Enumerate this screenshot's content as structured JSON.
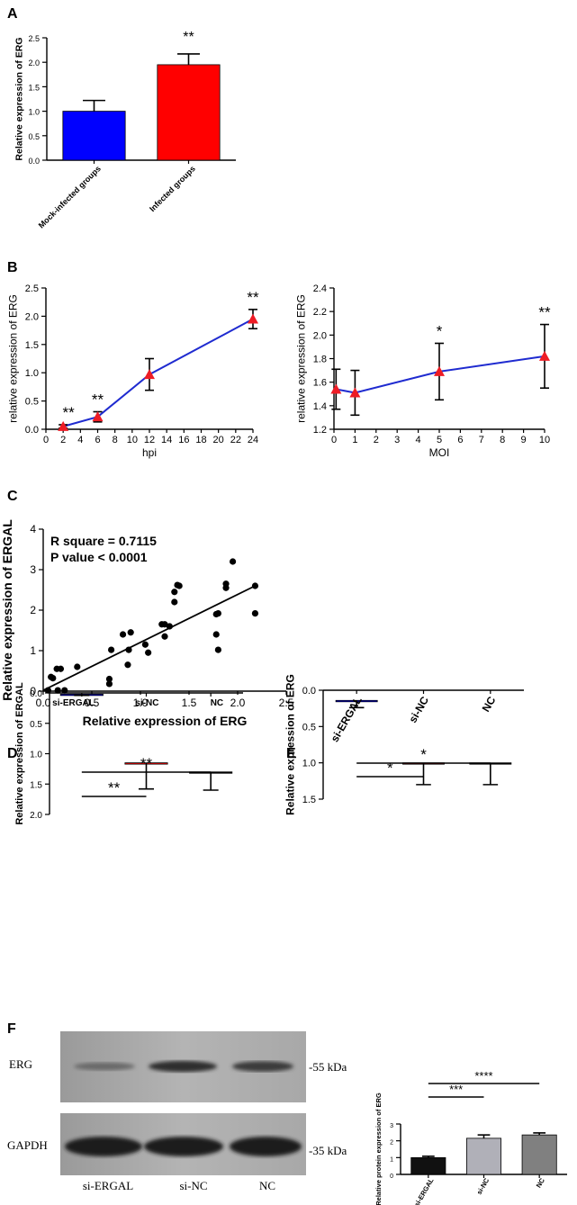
{
  "chart_data": [
    {
      "panel": "A",
      "type": "bar",
      "categories": [
        "Mock-infected groups",
        "Infected groups"
      ],
      "values": [
        1.0,
        1.95
      ],
      "errors": [
        0.22,
        0.22
      ],
      "colors": [
        "#0000ff",
        "#ff0000"
      ],
      "significance": [
        "",
        "**"
      ],
      "ylabel": "Relative expression of ERG",
      "ylim": [
        0,
        2.5
      ],
      "yticks": [
        "0.0",
        "0.5",
        "1.0",
        "1.5",
        "2.0",
        "2.5"
      ]
    },
    {
      "panel": "B-left",
      "type": "line",
      "x": [
        2,
        6,
        12,
        24
      ],
      "values": [
        0.05,
        0.22,
        0.97,
        1.95
      ],
      "errors": [
        0.03,
        0.09,
        0.28,
        0.17
      ],
      "significance": [
        "**",
        "**",
        "",
        "**"
      ],
      "xlabel": "hpi",
      "ylabel": "relative expression of ERG",
      "xlim": [
        0,
        24
      ],
      "ylim": [
        0,
        2.5
      ],
      "xticks": [
        "0",
        "2",
        "4",
        "6",
        "8",
        "10",
        "12",
        "14",
        "16",
        "18",
        "20",
        "22",
        "24"
      ],
      "yticks": [
        "0.0",
        "0.5",
        "1.0",
        "1.5",
        "2.0",
        "2.5"
      ]
    },
    {
      "panel": "B-right",
      "type": "line",
      "x": [
        0.1,
        1,
        5,
        10
      ],
      "values": [
        1.54,
        1.51,
        1.69,
        1.82
      ],
      "errors": [
        0.17,
        0.19,
        0.24,
        0.27
      ],
      "significance": [
        "",
        "",
        "*",
        "**"
      ],
      "xlabel": "MOI",
      "ylabel": "relative expression of ERG",
      "xlim": [
        0,
        10
      ],
      "ylim": [
        1.2,
        2.4
      ],
      "xticks": [
        "0",
        "1",
        "2",
        "3",
        "4",
        "5",
        "6",
        "7",
        "8",
        "9",
        "10"
      ],
      "yticks": [
        "1.2",
        "1.4",
        "1.6",
        "1.8",
        "2.0",
        "2.2",
        "2.4"
      ]
    },
    {
      "panel": "C",
      "type": "scatter",
      "points": [
        [
          0.05,
          0.02
        ],
        [
          0.08,
          0.35
        ],
        [
          0.1,
          0.32
        ],
        [
          0.14,
          0.55
        ],
        [
          0.15,
          0.02
        ],
        [
          0.18,
          0.55
        ],
        [
          0.22,
          0.02
        ],
        [
          0.35,
          0.6
        ],
        [
          0.68,
          0.3
        ],
        [
          0.68,
          0.18
        ],
        [
          0.7,
          1.02
        ],
        [
          0.82,
          1.4
        ],
        [
          0.87,
          0.65
        ],
        [
          0.88,
          1.02
        ],
        [
          0.9,
          1.45
        ],
        [
          1.05,
          1.15
        ],
        [
          1.08,
          0.95
        ],
        [
          1.22,
          1.65
        ],
        [
          1.25,
          1.65
        ],
        [
          1.25,
          1.35
        ],
        [
          1.3,
          1.6
        ],
        [
          1.35,
          2.45
        ],
        [
          1.35,
          2.2
        ],
        [
          1.38,
          2.62
        ],
        [
          1.4,
          2.6
        ],
        [
          1.78,
          1.9
        ],
        [
          1.78,
          1.4
        ],
        [
          1.8,
          1.92
        ],
        [
          1.8,
          1.02
        ],
        [
          1.88,
          2.65
        ],
        [
          1.88,
          2.55
        ],
        [
          1.95,
          3.2
        ],
        [
          2.18,
          2.6
        ],
        [
          2.18,
          1.92
        ]
      ],
      "fit": {
        "x": [
          0,
          2.18
        ],
        "y": [
          0.02,
          2.6
        ]
      },
      "annotations": [
        "R square = 0.7115",
        "P value < 0.0001"
      ],
      "xlabel": "Relative expression of ERG",
      "ylabel": "Relative expression of ERGAL",
      "xlim": [
        0,
        2.5
      ],
      "ylim": [
        0,
        4
      ],
      "xticks": [
        "0.0",
        "0.5",
        "1.0",
        "1.5",
        "2.0",
        "2.5"
      ],
      "yticks": [
        "0",
        "1",
        "2",
        "3",
        "4"
      ]
    },
    {
      "panel": "D",
      "type": "bar",
      "categories": [
        "si-ERGAL",
        "si-NC",
        "NC"
      ],
      "values": [
        0.02,
        1.15,
        1.3
      ],
      "errors": [
        0.02,
        0.43,
        0.3
      ],
      "colors": [
        "#0000ff",
        "#ff0000",
        "#000000"
      ],
      "comparisons": [
        "**",
        "**"
      ],
      "ylabel": "Relative expression of ERGAL",
      "ylim": [
        0,
        2.0
      ],
      "yticks": [
        "0.0",
        "0.5",
        "1.0",
        "1.5",
        "2.0"
      ]
    },
    {
      "panel": "E",
      "type": "bar",
      "categories": [
        "si-ERGAL",
        "si-NC",
        "NC"
      ],
      "values": [
        0.14,
        1.0,
        1.0
      ],
      "errors": [
        0.1,
        0.3,
        0.3
      ],
      "colors": [
        "#0000ff",
        "#ff0000",
        "#000000"
      ],
      "comparisons": [
        "*",
        "*"
      ],
      "ylabel": "Relative expression of ERG",
      "ylim": [
        0,
        1.5
      ],
      "yticks": [
        "0.0",
        "0.5",
        "1.0",
        "1.5"
      ]
    },
    {
      "panel": "F-bar",
      "type": "bar",
      "categories": [
        "si-ERGAL",
        "si-NC",
        "NC"
      ],
      "values": [
        1.0,
        2.15,
        2.35
      ],
      "errors": [
        0.08,
        0.2,
        0.12
      ],
      "colors": [
        "#111111",
        "#b0b0b8",
        "#808080"
      ],
      "comparisons": [
        "***",
        "****"
      ],
      "ylabel": "Relative protein expression of ERG",
      "ylim": [
        0,
        3
      ],
      "yticks": [
        "0",
        "1",
        "2",
        "3"
      ]
    }
  ],
  "panel_labels": {
    "a": "A",
    "b": "B",
    "c": "C",
    "d": "D",
    "e": "E",
    "f": "F"
  },
  "blot": {
    "band_labels": [
      "ERG",
      "GAPDH"
    ],
    "sizes": [
      "-55 kDa",
      "-35 kDa"
    ],
    "lanes": [
      "si-ERGAL",
      "si-NC",
      "NC"
    ],
    "erg_intensity": [
      0.35,
      0.8,
      0.7
    ]
  }
}
